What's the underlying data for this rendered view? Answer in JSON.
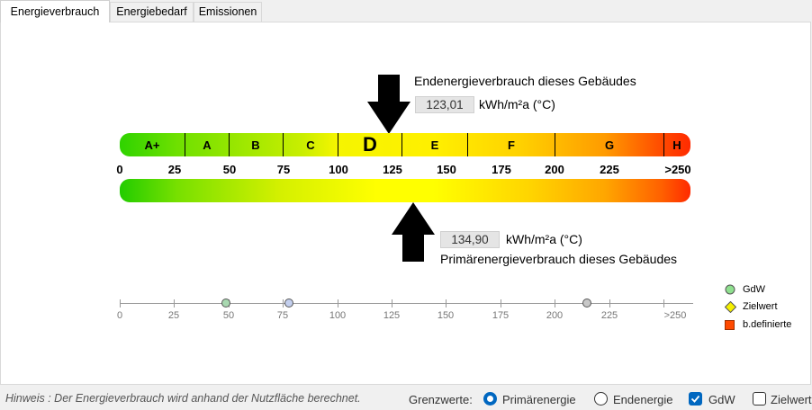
{
  "tabs": [
    {
      "label": "Energieverbrauch",
      "active": true
    },
    {
      "label": "Energiebedarf",
      "active": false
    },
    {
      "label": "Emissionen",
      "active": false
    }
  ],
  "end_energy": {
    "label": "Endenergieverbrauch dieses Gebäudes",
    "value": "123,01",
    "unit": "kWh/m²a (°C)"
  },
  "primary_energy": {
    "label": "Primärenergieverbrauch dieses Gebäudes",
    "value": "134,90",
    "unit": "kWh/m²a (°C)"
  },
  "classes": [
    {
      "label": "A+",
      "highlight": false
    },
    {
      "label": "A",
      "highlight": false
    },
    {
      "label": "B",
      "highlight": false
    },
    {
      "label": "C",
      "highlight": false
    },
    {
      "label": "D",
      "highlight": true
    },
    {
      "label": "E",
      "highlight": false
    },
    {
      "label": "F",
      "highlight": false
    },
    {
      "label": "G",
      "highlight": false
    },
    {
      "label": "H",
      "highlight": false
    }
  ],
  "scale_ticks": [
    "0",
    "25",
    "50",
    "75",
    "100",
    "125",
    "150",
    "175",
    "200",
    "225",
    ">250"
  ],
  "small_scale": {
    "ticks": [
      "0",
      "25",
      "50",
      "75",
      "100",
      "125",
      "150",
      "175",
      "200",
      "225",
      ">250"
    ],
    "markers": [
      {
        "value": 49,
        "color": "#a8d8b0"
      },
      {
        "value": 78,
        "color": "#c3cfee"
      },
      {
        "value": 215,
        "color": "#c8c8c8"
      }
    ]
  },
  "legend": [
    {
      "label": "GdW",
      "color": "#8fe08f",
      "shape": "circle"
    },
    {
      "label": "Zielwert",
      "color": "#f5f000",
      "shape": "diamond"
    },
    {
      "label": "b.definierte",
      "color": "#ff4a00",
      "shape": "square"
    }
  ],
  "footer": {
    "hint": "Hinweis : Der Energieverbrauch wird anhand der Nutzfläche berechnet.",
    "grenzwerte_label": "Grenzwerte:",
    "options": [
      {
        "label": "Primärenergie",
        "type": "radio",
        "checked": true
      },
      {
        "label": "Endenergie",
        "type": "radio",
        "checked": false
      },
      {
        "label": "GdW",
        "type": "checkbox",
        "checked": true
      },
      {
        "label": "Zielwert",
        "type": "checkbox",
        "checked": false
      }
    ]
  },
  "colors": {
    "accent": "#0067c0",
    "arrow": "#000000"
  }
}
